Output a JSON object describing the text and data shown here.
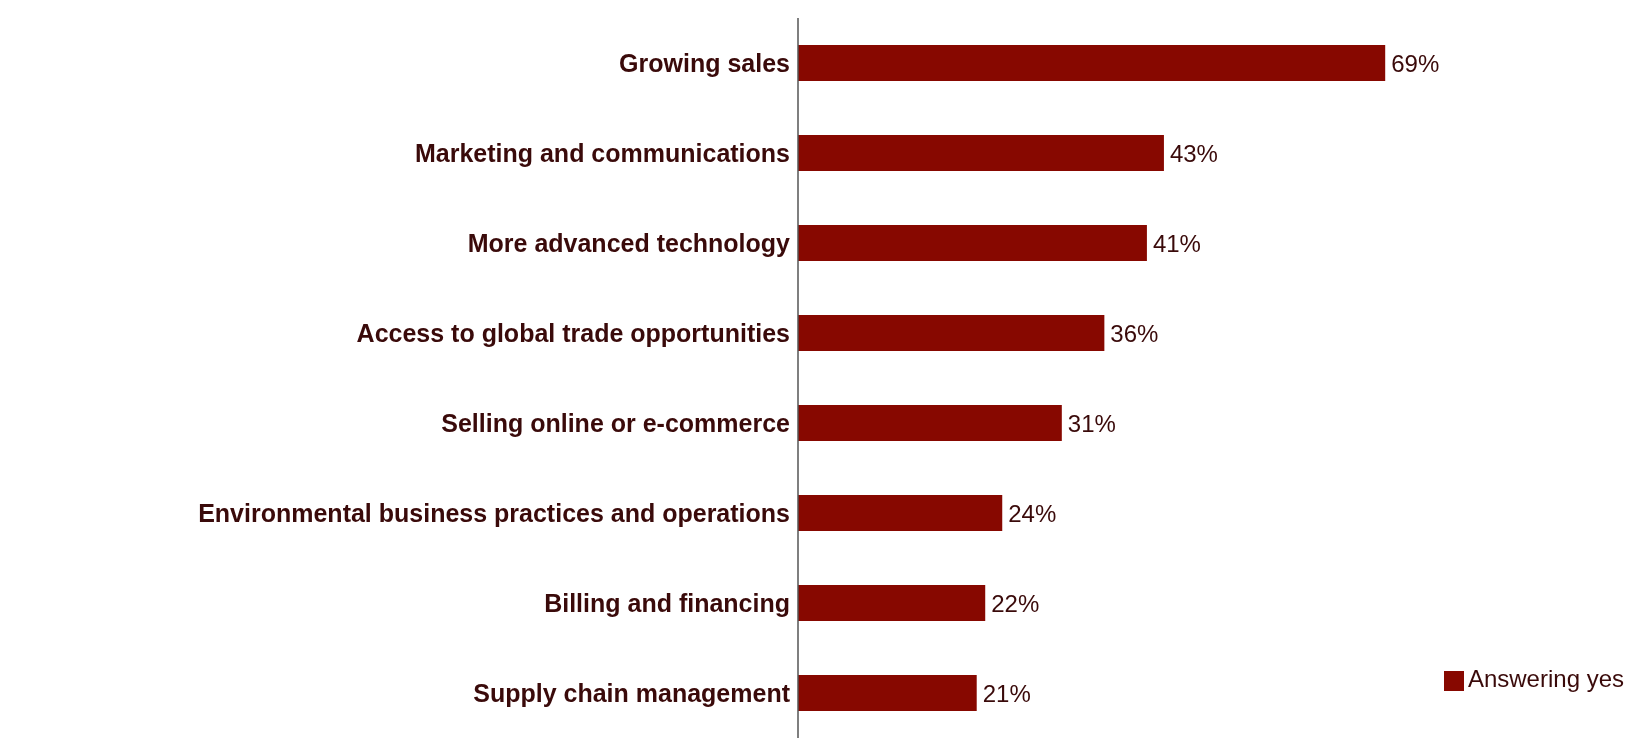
{
  "chart_data": {
    "type": "bar",
    "orientation": "horizontal",
    "categories": [
      "Growing sales",
      "Marketing and communications",
      "More advanced technology",
      "Access to global trade opportunities",
      "Selling online or e-commerce",
      "Environmental business practices and operations",
      "Billing and financing",
      "Supply chain management"
    ],
    "series": [
      {
        "name": "Answering yes",
        "color": "#870800",
        "values": [
          69,
          43,
          41,
          36,
          31,
          24,
          22,
          21
        ],
        "value_labels": [
          "69%",
          "43%",
          "41%",
          "36%",
          "31%",
          "24%",
          "22%",
          "21%"
        ]
      }
    ],
    "legend": "bottom right",
    "grid": false
  }
}
